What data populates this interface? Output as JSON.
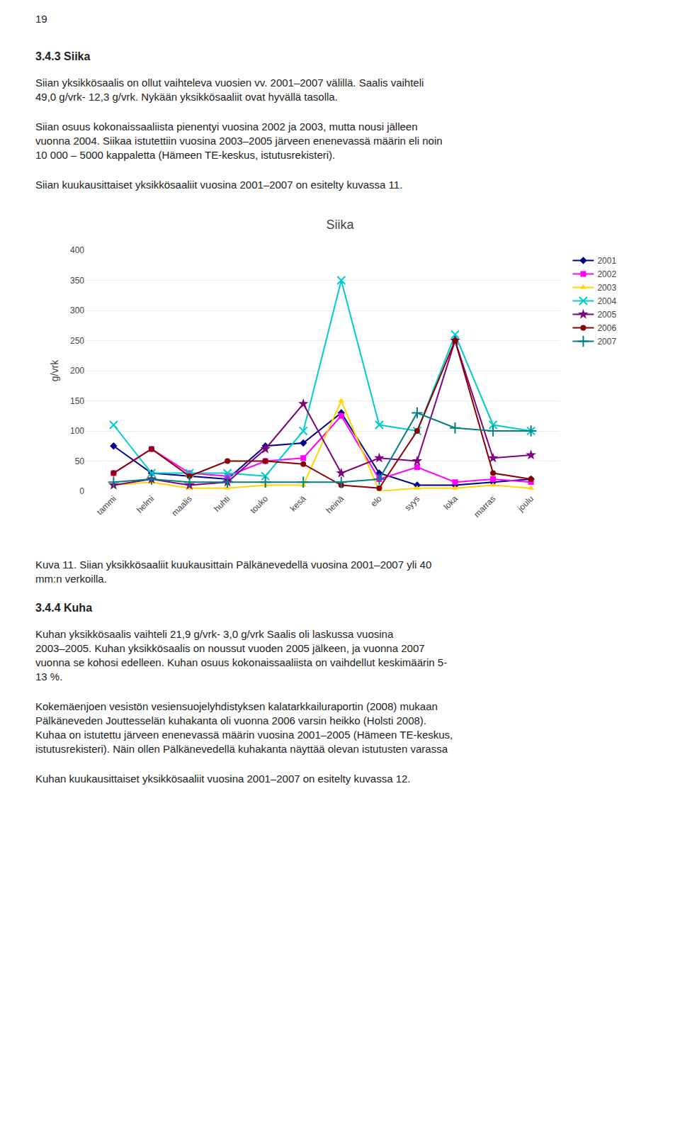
{
  "page_number": "19",
  "text_before": [
    {
      "heading": "3.4.3 Siika"
    },
    {
      "lines": [
        "Siian yksikkösaalis on ollut vaihteleva vuosien vv. 2001–2007 välillä. Saalis vaihteli",
        "49,0 g/vrk- 12,3 g/vrk. Nykään yksikkösaaliit ovat hyvällä tasolla."
      ]
    },
    {
      "lines": [
        "Siian osuus kokonaissaaliista pienentyi vuosina 2002 ja 2003, mutta nousi jälleen",
        "vuonna 2004. Siikaa istutettiin vuosina 2003–2005 järveen enenevassä määrin eli noin",
        "10 000 – 5000 kappaletta (Hämeen TE-keskus, istutusrekisteri)."
      ]
    },
    {
      "lines": [
        "Siian kuukausittaiset yksikkösaaliit vuosina 2001–2007 on esitelty kuvassa 11."
      ]
    }
  ],
  "chart_data": {
    "type": "line",
    "title": "Siika",
    "ylabel": "g/vrk",
    "categories": [
      "tammi",
      "helmi",
      "maalis",
      "huhti",
      "touko",
      "kesä",
      "heinä",
      "elo",
      "syys",
      "loka",
      "marras",
      "joulu"
    ],
    "series": [
      {
        "name": "2001",
        "color": "#00008B",
        "marker": "diamond",
        "values": [
          75,
          30,
          25,
          20,
          75,
          80,
          130,
          30,
          10,
          10,
          15,
          20
        ]
      },
      {
        "name": "2002",
        "color": "#FF00FF",
        "marker": "square",
        "values": [
          30,
          70,
          30,
          25,
          50,
          55,
          125,
          20,
          40,
          15,
          20,
          15
        ]
      },
      {
        "name": "2003",
        "color": "#FFD700",
        "marker": "triangle-up",
        "values": [
          10,
          15,
          5,
          5,
          10,
          10,
          150,
          0,
          5,
          5,
          10,
          5
        ]
      },
      {
        "name": "2004",
        "color": "#00CCCC",
        "marker": "x",
        "values": [
          110,
          30,
          30,
          30,
          25,
          100,
          350,
          110,
          100,
          260,
          110,
          100
        ]
      },
      {
        "name": "2005",
        "color": "#800080",
        "marker": "star",
        "values": [
          10,
          20,
          10,
          15,
          70,
          145,
          30,
          55,
          50,
          250,
          55,
          60
        ]
      },
      {
        "name": "2006",
        "color": "#8B0000",
        "marker": "circle",
        "values": [
          30,
          70,
          25,
          50,
          50,
          45,
          10,
          5,
          100,
          250,
          30,
          20
        ]
      },
      {
        "name": "2007",
        "color": "#008080",
        "marker": "cross",
        "values": [
          15,
          20,
          15,
          15,
          15,
          15,
          15,
          20,
          130,
          105,
          100,
          100
        ]
      }
    ],
    "ylim": [
      0,
      400
    ],
    "yticks": [
      0,
      50,
      100,
      150,
      200,
      250,
      300,
      350,
      400
    ],
    "grid": true,
    "legend": "right"
  },
  "text_after": [
    {
      "lines": [
        "Kuva 11. Siian yksikkösaaliit kuukausittain Pälkänevedellä vuosina 2001–2007 yli 40",
        "mm:n verkoilla."
      ]
    },
    {
      "heading": "3.4.4 Kuha"
    },
    {
      "lines": [
        "Kuhan yksikkösaalis vaihteli 21,9 g/vrk- 3,0 g/vrk Saalis oli laskussa vuosina",
        "2003–2005. Kuhan yksikkösaalis on noussut vuoden 2005 jälkeen, ja vuonna 2007",
        "vuonna se kohosi edelleen. Kuhan osuus kokonaissaaliista on vaihdellut keskimäärin 5-",
        "13 %."
      ]
    },
    {
      "lines": [
        "Kokemäenjoen vesistön vesiensuojelyhdistyksen kalatarkkailuraportin (2008) mukaan",
        "Pälkäneveden Jouttesselän kuhakanta oli vuonna 2006 varsin heikko (Holsti 2008).",
        "Kuhaa on istutettu järveen enenevassä määrin vuosina 2001–2005 (Hämeen TE-keskus,",
        "istutusrekisteri). Näin ollen Pälkänevedellä kuhakanta näyttää olevan istutusten varassa"
      ]
    },
    {
      "lines": [
        "Kuhan kuukausittaiset yksikkösaaliit vuosina 2001–2007 on esitelty kuvassa 12."
      ]
    }
  ]
}
